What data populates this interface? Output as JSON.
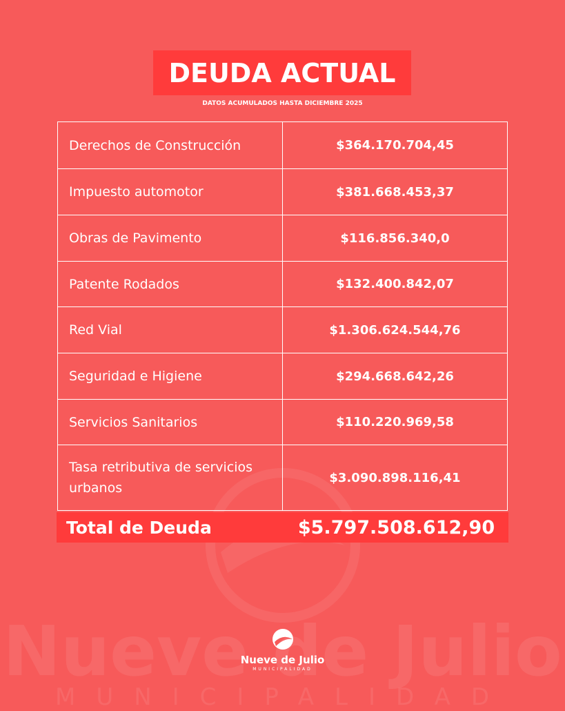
{
  "header": {
    "title": "DEUDA ACTUAL",
    "subtitle": "DATOS ACUMULADOS HASTA DICIEMBRE 2025"
  },
  "table": {
    "rows": [
      [
        "Derechos de Construcción",
        "$364.170.704,45"
      ],
      [
        "Impuesto automotor",
        "$381.668.453,37"
      ],
      [
        "Obras de Pavimento",
        "$116.856.340,0"
      ],
      [
        "Patente Rodados",
        "$132.400.842,07"
      ],
      [
        "Red Vial",
        "$1.306.624.544,76"
      ],
      [
        "Seguridad e Higiene",
        "$294.668.642,26"
      ],
      [
        "Servicios Sanitarios",
        "$110.220.969,58"
      ],
      [
        "Tasa retributiva de servicios urbanos",
        "$3.090.898.116,41"
      ]
    ],
    "total": [
      "Total de Deuda",
      "$5.797.508.612,90"
    ]
  },
  "watermark": {
    "name": "Nueve de Julio",
    "subtitle": "MUNICIPALIDAD"
  },
  "logo": {
    "name": "Nueve de Julio",
    "subtitle": "MUNICIPALIDAD"
  }
}
